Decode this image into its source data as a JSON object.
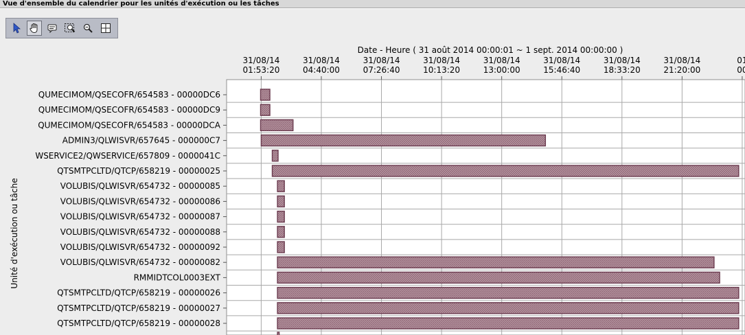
{
  "window": {
    "title": "Vue d'ensemble du calendrier pour les unités d'exécution ou les tâches"
  },
  "toolbar": {
    "tools": [
      "select-pointer-icon",
      "pan-hand-icon",
      "comment-icon",
      "zoom-box-icon",
      "zoom-out-icon",
      "crosshair-icon"
    ],
    "active_tool": "pan-hand-icon"
  },
  "colors": {
    "bar_fill": "#a98591",
    "bar_stroke": "#6b3b4f",
    "grid": "#a8a8a8",
    "plot_bg": "#ffffff"
  },
  "chart_data": {
    "type": "gantt",
    "xlabel": "Date - Heure ( 31 août 2014 00:00:01 ~ 1 sept. 2014 00:00:00 )",
    "ylabel": "Unité d'exécution ou tâche",
    "x_tick_labels": [
      [
        "31/08/14",
        "01:53:20"
      ],
      [
        "31/08/14",
        "04:40:00"
      ],
      [
        "31/08/14",
        "07:26:40"
      ],
      [
        "31/08/14",
        "10:13:20"
      ],
      [
        "31/08/14",
        "13:00:00"
      ],
      [
        "31/08/14",
        "15:46:40"
      ],
      [
        "31/08/14",
        "18:33:20"
      ],
      [
        "31/08/14",
        "21:20:00"
      ],
      [
        "01",
        "00"
      ]
    ],
    "x_tick_hours": [
      1.8889,
      4.6667,
      7.4444,
      10.2222,
      13.0,
      15.7778,
      18.5556,
      21.3333,
      24.1111
    ],
    "x_range_hours": [
      1.6,
      24.2
    ],
    "grid": true,
    "categories": [
      "QUMECIMOM/QSECOFR/654583 - 00000DC6",
      "QUMECIMOM/QSECOFR/654583 - 00000DC9",
      "QUMECIMOM/QSECOFR/654583 - 00000DCA",
      "ADMIN3/QLWISVR/657645 - 000000C7",
      "WSERVICE2/QWSERVICE/657809 - 0000041C",
      "QTSMTPCLTD/QTCP/658219 - 00000025",
      "VOLUBIS/QLWISVR/654732 - 00000085",
      "VOLUBIS/QLWISVR/654732 - 00000086",
      "VOLUBIS/QLWISVR/654732 - 00000087",
      "VOLUBIS/QLWISVR/654732 - 00000088",
      "VOLUBIS/QLWISVR/654732 - 00000092",
      "VOLUBIS/QLWISVR/654732 - 00000082",
      "RMMIDTCOL0003EXT",
      "QTSMTPCLTD/QTCP/658219 - 00000026",
      "QTSMTPCLTD/QTCP/658219 - 00000027",
      "QTSMTPCLTD/QTCP/658219 - 00000028"
    ],
    "bars": [
      {
        "start_h": 1.86,
        "end_h": 2.29
      },
      {
        "start_h": 1.86,
        "end_h": 2.29
      },
      {
        "start_h": 1.86,
        "end_h": 3.36
      },
      {
        "start_h": 1.89,
        "end_h": 15.02
      },
      {
        "start_h": 2.4,
        "end_h": 2.67
      },
      {
        "start_h": 2.4,
        "end_h": 23.95
      },
      {
        "start_h": 2.64,
        "end_h": 2.96
      },
      {
        "start_h": 2.64,
        "end_h": 2.96
      },
      {
        "start_h": 2.64,
        "end_h": 2.96
      },
      {
        "start_h": 2.64,
        "end_h": 2.96
      },
      {
        "start_h": 2.64,
        "end_h": 2.96
      },
      {
        "start_h": 2.64,
        "end_h": 22.81
      },
      {
        "start_h": 2.64,
        "end_h": 23.07
      },
      {
        "start_h": 2.64,
        "end_h": 23.95
      },
      {
        "start_h": 2.64,
        "end_h": 23.95
      },
      {
        "start_h": 2.64,
        "end_h": 23.95
      }
    ],
    "partial_bar_below": {
      "start_h": 2.64,
      "end_h": 2.72
    }
  }
}
